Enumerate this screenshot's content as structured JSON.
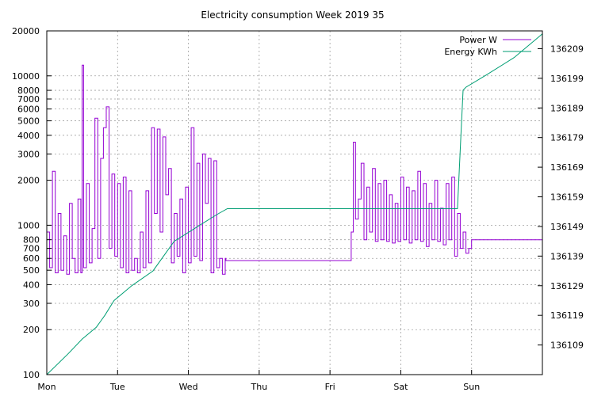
{
  "chart_data": {
    "type": "line",
    "title": "Electricity consumption Week 2019 35",
    "xlabel": "",
    "ylabel": "",
    "grid": true,
    "legend_position": "top-right",
    "x_categories": [
      "Mon",
      "Tue",
      "Wed",
      "Thu",
      "Fri",
      "Sat",
      "Sun"
    ],
    "xlim": [
      0,
      7
    ],
    "y_left": {
      "scale": "log",
      "lim": [
        100,
        20000
      ],
      "ticks": [
        100,
        200,
        300,
        400,
        500,
        600,
        700,
        800,
        1000,
        2000,
        3000,
        4000,
        5000,
        6000,
        7000,
        8000,
        10000,
        20000
      ]
    },
    "y_right": {
      "scale": "linear",
      "lim": [
        136099,
        136215
      ],
      "ticks": [
        136109,
        136119,
        136129,
        136139,
        136149,
        136159,
        136169,
        136179,
        136189,
        136199,
        136209
      ]
    },
    "series": [
      {
        "name": "Power W",
        "axis": "left",
        "color": "#9400d3",
        "x": [
          0.0,
          0.04,
          0.08,
          0.12,
          0.16,
          0.2,
          0.24,
          0.28,
          0.32,
          0.36,
          0.4,
          0.44,
          0.48,
          0.5,
          0.52,
          0.56,
          0.6,
          0.64,
          0.68,
          0.72,
          0.76,
          0.8,
          0.84,
          0.88,
          0.92,
          0.96,
          1.0,
          1.04,
          1.08,
          1.12,
          1.16,
          1.2,
          1.24,
          1.28,
          1.32,
          1.36,
          1.4,
          1.44,
          1.48,
          1.52,
          1.56,
          1.6,
          1.64,
          1.68,
          1.72,
          1.76,
          1.8,
          1.84,
          1.88,
          1.92,
          1.96,
          2.0,
          2.04,
          2.08,
          2.12,
          2.16,
          2.2,
          2.24,
          2.28,
          2.32,
          2.36,
          2.4,
          2.44,
          2.48,
          2.5,
          2.52,
          2.53,
          2.55,
          4.3,
          4.3,
          4.33,
          4.36,
          4.4,
          4.44,
          4.48,
          4.52,
          4.56,
          4.6,
          4.64,
          4.68,
          4.72,
          4.76,
          4.8,
          4.84,
          4.88,
          4.92,
          4.96,
          5.0,
          5.04,
          5.08,
          5.12,
          5.16,
          5.2,
          5.24,
          5.28,
          5.32,
          5.36,
          5.4,
          5.44,
          5.48,
          5.52,
          5.56,
          5.6,
          5.64,
          5.68,
          5.72,
          5.76,
          5.8,
          5.84,
          5.88,
          5.92,
          5.96,
          6.0
        ],
        "values": [
          900,
          520,
          2300,
          480,
          1200,
          500,
          850,
          470,
          1400,
          600,
          480,
          1500,
          480,
          11800,
          520,
          1900,
          560,
          950,
          5200,
          600,
          2800,
          4500,
          6200,
          700,
          2200,
          620,
          1900,
          520,
          2100,
          480,
          1700,
          500,
          600,
          480,
          900,
          520,
          1700,
          560,
          4500,
          1200,
          4400,
          900,
          3900,
          1600,
          2400,
          560,
          1200,
          620,
          1500,
          480,
          1800,
          560,
          4500,
          620,
          2600,
          580,
          3000,
          1400,
          2800,
          480,
          2700,
          520,
          600,
          470,
          470,
          600,
          580,
          580,
          580,
          900,
          3600,
          1100,
          1500,
          2600,
          800,
          1800,
          900,
          2400,
          780,
          1900,
          800,
          2000,
          780,
          1600,
          760,
          1400,
          780,
          2100,
          800,
          1800,
          760,
          1700,
          800,
          2300,
          780,
          1900,
          720,
          1400,
          800,
          2000,
          780,
          1300,
          740,
          1900,
          800,
          2100,
          620,
          1200,
          700,
          900,
          650,
          700,
          800
        ]
      },
      {
        "name": "Energy KWh",
        "axis": "right",
        "color": "#009e73",
        "x": [
          0.0,
          0.3,
          0.5,
          0.7,
          0.82,
          0.95,
          1.2,
          1.5,
          1.65,
          1.8,
          2.0,
          2.2,
          2.4,
          2.55,
          5.8,
          5.85,
          5.88,
          5.92,
          6.2,
          6.6,
          7.0
        ],
        "values": [
          136099,
          136106,
          136111,
          136115,
          136119,
          136124,
          136129,
          136134,
          136139,
          136144,
          136147,
          136150,
          136153,
          136155,
          136155,
          136180,
          136195,
          136196,
          136200,
          136206,
          136214
        ]
      }
    ]
  }
}
